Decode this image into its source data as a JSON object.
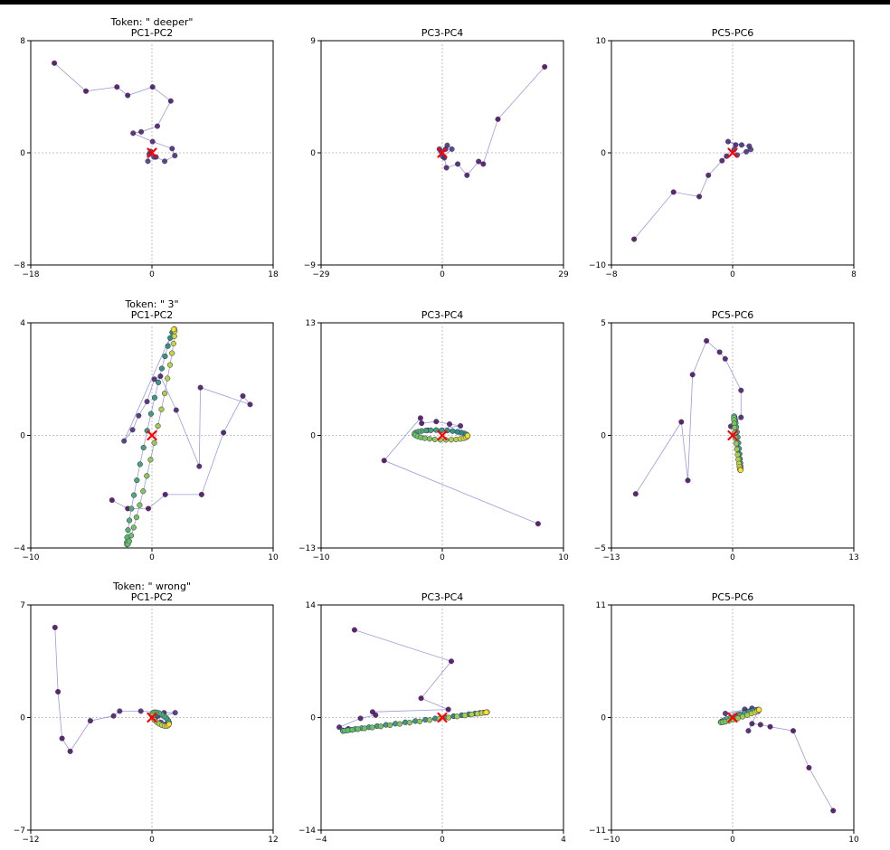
{
  "figure": {
    "accent_line": "#7070c8",
    "marker_color": "#ff0000"
  },
  "chart_data": [
    {
      "type": "scatter",
      "row": 0,
      "col": 0,
      "token_label": "Token: \" deeper\"",
      "title": "PC1-PC2",
      "xlim": [
        -18,
        18
      ],
      "ylim": [
        -8,
        8
      ],
      "xticks": [
        "-18",
        "0",
        "18"
      ],
      "yticks": [
        "-8",
        "0",
        "8"
      ],
      "points": [
        [
          -14.5,
          6.4
        ],
        [
          -9.8,
          4.4
        ],
        [
          -5.2,
          4.7
        ],
        [
          -3.6,
          4.1
        ],
        [
          0.1,
          4.7
        ],
        [
          2.8,
          3.7
        ],
        [
          0.8,
          1.9
        ],
        [
          -1.6,
          1.5
        ],
        [
          -2.8,
          1.4
        ],
        [
          0.1,
          0.8
        ],
        [
          3.0,
          0.3
        ],
        [
          3.4,
          -0.2
        ],
        [
          1.9,
          -0.6
        ],
        [
          0.6,
          -0.3
        ],
        [
          -0.4,
          -0.1
        ],
        [
          -0.6,
          -0.6
        ],
        [
          -0.2,
          0.1
        ],
        [
          0.3,
          -0.3
        ]
      ],
      "marker": [
        0,
        0
      ]
    },
    {
      "type": "scatter",
      "row": 0,
      "col": 1,
      "title": "PC3-PC4",
      "xlim": [
        -29,
        29
      ],
      "ylim": [
        -9,
        9
      ],
      "xticks": [
        "-29",
        "0",
        "29"
      ],
      "yticks": [
        "-9",
        "0",
        "9"
      ],
      "points": [
        [
          24.5,
          6.9
        ],
        [
          13.3,
          2.7
        ],
        [
          9.8,
          -0.9
        ],
        [
          8.7,
          -0.7
        ],
        [
          5.9,
          -1.8
        ],
        [
          3.7,
          -0.9
        ],
        [
          1.0,
          -1.2
        ],
        [
          0.5,
          -0.4
        ],
        [
          -0.7,
          0.3
        ],
        [
          0.8,
          0.3
        ],
        [
          1.2,
          0.6
        ],
        [
          2.3,
          0.3
        ],
        [
          0.1,
          -0.3
        ],
        [
          -0.3,
          0.1
        ]
      ],
      "marker": [
        0,
        0
      ]
    },
    {
      "type": "scatter",
      "row": 0,
      "col": 2,
      "title": "PC5-PC6",
      "xlim": [
        -8,
        8
      ],
      "ylim": [
        -10,
        10
      ],
      "xticks": [
        "-8",
        "",
        "0",
        "8"
      ],
      "yticks": [
        "-10",
        "0",
        "10"
      ],
      "points": [
        [
          -6.5,
          -7.7
        ],
        [
          -3.9,
          -3.5
        ],
        [
          -2.2,
          -3.9
        ],
        [
          -1.6,
          -2.0
        ],
        [
          -0.7,
          -0.7
        ],
        [
          -0.4,
          -0.3
        ],
        [
          0.2,
          0.7
        ],
        [
          -0.3,
          1.0
        ],
        [
          0.6,
          0.7
        ],
        [
          1.1,
          0.6
        ],
        [
          0.9,
          0.1
        ],
        [
          1.2,
          0.3
        ],
        [
          0.3,
          -0.2
        ],
        [
          0.1,
          0.3
        ]
      ],
      "marker": [
        0,
        0
      ]
    },
    {
      "type": "scatter",
      "row": 1,
      "col": 0,
      "token_label": "Token: \" 3\"",
      "title": "PC1-PC2",
      "xlim": [
        -10,
        10
      ],
      "ylim": [
        -4,
        4
      ],
      "xticks": [
        "-10",
        "0",
        "10"
      ],
      "yticks": [
        "-4",
        "0",
        "4"
      ],
      "points": [
        [
          -3.3,
          -2.3
        ],
        [
          -2.0,
          -2.6
        ],
        [
          -0.3,
          -2.6
        ],
        [
          1.1,
          -2.1
        ],
        [
          4.1,
          -2.1
        ],
        [
          5.9,
          0.1
        ],
        [
          7.5,
          1.4
        ],
        [
          8.1,
          1.1
        ],
        [
          4.0,
          1.7
        ],
        [
          3.9,
          -1.1
        ],
        [
          2.0,
          0.9
        ],
        [
          0.7,
          2.1
        ],
        [
          0.2,
          2.0
        ],
        [
          -0.4,
          1.2
        ],
        [
          -1.1,
          0.7
        ],
        [
          -1.6,
          0.2
        ],
        [
          -2.3,
          -0.2
        ]
      ],
      "ring": {
        "cx": -0.1,
        "cy": -0.05,
        "a": 4.3,
        "b": 0.36,
        "theta_deg": 63,
        "count": 80
      },
      "marker": [
        0,
        0
      ]
    },
    {
      "type": "scatter",
      "row": 1,
      "col": 1,
      "title": "PC3-PC4",
      "xlim": [
        -10,
        10
      ],
      "ylim": [
        -13,
        13
      ],
      "xticks": [
        "-10",
        "0",
        "10"
      ],
      "yticks": [
        "-13",
        "0",
        "13"
      ],
      "points": [
        [
          7.9,
          -10.2
        ],
        [
          -4.8,
          -2.9
        ],
        [
          -1.8,
          2.0
        ],
        [
          -1.7,
          1.4
        ],
        [
          -0.5,
          1.6
        ],
        [
          0.6,
          1.3
        ],
        [
          1.5,
          1.1
        ],
        [
          -1.2,
          0.6
        ],
        [
          1.3,
          0.4
        ]
      ],
      "ring": {
        "cx": -0.1,
        "cy": 0.05,
        "a": 2.2,
        "b": 0.55,
        "theta_deg": -3,
        "count": 60
      },
      "marker": [
        0,
        0
      ]
    },
    {
      "type": "scatter",
      "row": 1,
      "col": 2,
      "title": "PC5-PC6",
      "xlim": [
        -13,
        13
      ],
      "ylim": [
        -5,
        5
      ],
      "xticks": [
        "-13",
        "0",
        "13"
      ],
      "yticks": [
        "-5",
        "0",
        "5"
      ],
      "points": [
        [
          -10.4,
          -2.6
        ],
        [
          -5.5,
          0.6
        ],
        [
          -4.8,
          -2.0
        ],
        [
          -4.3,
          2.7
        ],
        [
          -2.8,
          4.2
        ],
        [
          -1.4,
          3.7
        ],
        [
          -0.8,
          3.4
        ],
        [
          0.9,
          2.0
        ],
        [
          0.9,
          0.8
        ],
        [
          0.3,
          0.6
        ],
        [
          -0.2,
          0.4
        ]
      ],
      "ring": {
        "cx": 0.5,
        "cy": -0.35,
        "a": 1.25,
        "b": 0.12,
        "theta_deg": -74,
        "count": 60
      },
      "marker": [
        0,
        0
      ]
    },
    {
      "type": "scatter",
      "row": 2,
      "col": 0,
      "token_label": "Token: \" wrong\"",
      "title": "PC1-PC2",
      "xlim": [
        -12,
        12
      ],
      "ylim": [
        -7,
        7
      ],
      "xticks": [
        "-12",
        "0",
        "12"
      ],
      "yticks": [
        "-7",
        "0",
        "7"
      ],
      "points": [
        [
          -9.6,
          5.6
        ],
        [
          -9.3,
          1.6
        ],
        [
          -8.9,
          -1.3
        ],
        [
          -8.1,
          -2.1
        ],
        [
          -6.1,
          -0.2
        ],
        [
          -3.8,
          0.1
        ],
        [
          -3.2,
          0.4
        ],
        [
          -1.1,
          0.4
        ],
        [
          1.2,
          0.3
        ],
        [
          2.3,
          0.3
        ],
        [
          0.3,
          -0.1
        ],
        [
          1.4,
          -0.4
        ],
        [
          0.9,
          -0.3
        ],
        [
          0.6,
          0.1
        ]
      ],
      "ring": {
        "cx": 0.85,
        "cy": -0.1,
        "a": 0.9,
        "b": 0.32,
        "theta_deg": -20,
        "count": 40
      },
      "marker": [
        0,
        0
      ]
    },
    {
      "type": "scatter",
      "row": 2,
      "col": 1,
      "title": "PC3-PC4",
      "xlim": [
        -4,
        4
      ],
      "ylim": [
        -14,
        14
      ],
      "xticks": [
        "-4",
        "0",
        "4"
      ],
      "yticks": [
        "-14",
        "0",
        "14"
      ],
      "points": [
        [
          -2.9,
          10.9
        ],
        [
          0.3,
          7.0
        ],
        [
          -0.7,
          2.4
        ],
        [
          0.2,
          1.0
        ],
        [
          -2.3,
          0.7
        ],
        [
          -2.2,
          0.3
        ],
        [
          -2.7,
          -0.1
        ],
        [
          -3.4,
          -1.2
        ],
        [
          -3.1,
          -1.4
        ]
      ],
      "ring": {
        "cx": -0.9,
        "cy": -0.5,
        "a": 2.65,
        "b": 0.05,
        "theta_deg": 26,
        "count": 90
      },
      "marker": [
        0,
        0
      ]
    },
    {
      "type": "scatter",
      "row": 2,
      "col": 2,
      "title": "PC5-PC6",
      "xlim": [
        -10,
        10
      ],
      "ylim": [
        -11,
        11
      ],
      "xticks": [
        "-10",
        "0",
        "10"
      ],
      "yticks": [
        "-11",
        "0",
        "11"
      ],
      "points": [
        [
          8.3,
          -9.1
        ],
        [
          6.3,
          -4.9
        ],
        [
          5.0,
          -1.3
        ],
        [
          3.1,
          -0.9
        ],
        [
          2.3,
          -0.7
        ],
        [
          1.6,
          -0.6
        ],
        [
          1.3,
          -1.3
        ],
        [
          2.1,
          0.6
        ],
        [
          1.0,
          0.8
        ],
        [
          1.6,
          0.9
        ],
        [
          -0.6,
          0.4
        ]
      ],
      "ring": {
        "cx": 0.6,
        "cy": 0.15,
        "a": 1.7,
        "b": 0.15,
        "theta_deg": 21,
        "count": 50
      },
      "marker": [
        0,
        0
      ]
    }
  ]
}
